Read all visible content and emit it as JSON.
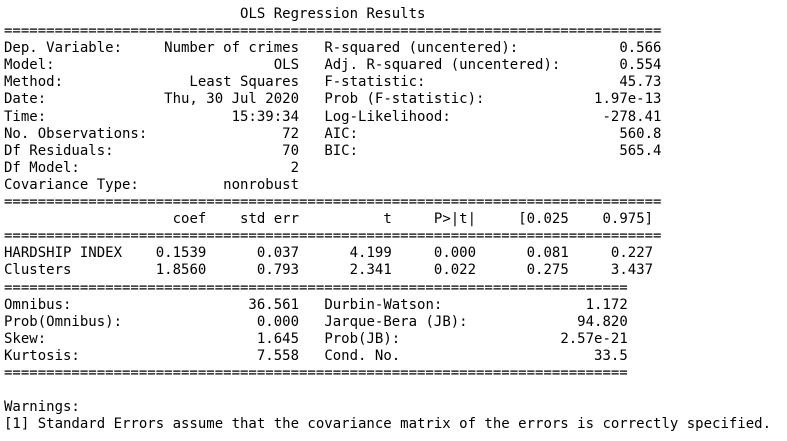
{
  "title": "OLS Regression Results",
  "separators": {
    "eq_78": "==============================================================================",
    "eq_78_inner": "==============================================================================",
    "eq_78_b": "==============================================================================",
    "eq_74": "==========================================================================",
    "eq_74_b": "==========================================================================",
    "eq_74_c": "==========================================================================",
    "eq_74_d": "=========================================================================="
  },
  "model_info": {
    "dep_variable": {
      "label": "Dep. Variable:",
      "value": "Number of crimes"
    },
    "model": {
      "label": "Model:",
      "value": "OLS"
    },
    "method": {
      "label": "Method:",
      "value": "Least Squares"
    },
    "date": {
      "label": "Date:",
      "value": "Thu, 30 Jul 2020"
    },
    "time": {
      "label": "Time:",
      "value": "15:39:34"
    },
    "n_obs": {
      "label": "No. Observations:",
      "value": "72"
    },
    "df_resid": {
      "label": "Df Residuals:",
      "value": "70"
    },
    "df_model": {
      "label": "Df Model:",
      "value": "2"
    },
    "cov_type": {
      "label": "Covariance Type:",
      "value": "nonrobust"
    },
    "r_squared": {
      "label": "R-squared (uncentered):",
      "value": "0.566"
    },
    "adj_r_squared": {
      "label": "Adj. R-squared (uncentered):",
      "value": "0.554"
    },
    "f_stat": {
      "label": "F-statistic:",
      "value": "45.73"
    },
    "prob_f": {
      "label": "Prob (F-statistic):",
      "value": "1.97e-13"
    },
    "log_lik": {
      "label": "Log-Likelihood:",
      "value": "-278.41"
    },
    "aic": {
      "label": "AIC:",
      "value": "560.8"
    },
    "bic": {
      "label": "BIC:",
      "value": "565.4"
    }
  },
  "coef_table": {
    "headers": [
      "coef",
      "std err",
      "t",
      "P>|t|",
      "[0.025",
      "0.975]"
    ],
    "rows": [
      {
        "name": "HARDSHIP INDEX",
        "values": [
          "0.1539",
          "0.037",
          "4.199",
          "0.000",
          "0.081",
          "0.227"
        ]
      },
      {
        "name": "Clusters",
        "values": [
          "1.8560",
          "0.793",
          "2.341",
          "0.022",
          "0.275",
          "3.437"
        ]
      }
    ]
  },
  "diagnostics": {
    "omnibus": {
      "label": "Omnibus:",
      "value": "36.561"
    },
    "prob_omnibus": {
      "label": "Prob(Omnibus):",
      "value": "0.000"
    },
    "skew": {
      "label": "Skew:",
      "value": "1.645"
    },
    "kurtosis": {
      "label": "Kurtosis:",
      "value": "7.558"
    },
    "durbin_watson": {
      "label": "Durbin-Watson:",
      "value": "1.172"
    },
    "jarque_bera": {
      "label": "Jarque-Bera (JB):",
      "value": "94.820"
    },
    "prob_jb": {
      "label": "Prob(JB):",
      "value": "2.57e-21"
    },
    "cond_no": {
      "label": "Cond. No.",
      "value": "33.5"
    }
  },
  "warnings": {
    "heading": "Warnings:",
    "items": [
      "[1] Standard Errors assume that the covariance matrix of the errors is correctly specified."
    ]
  }
}
